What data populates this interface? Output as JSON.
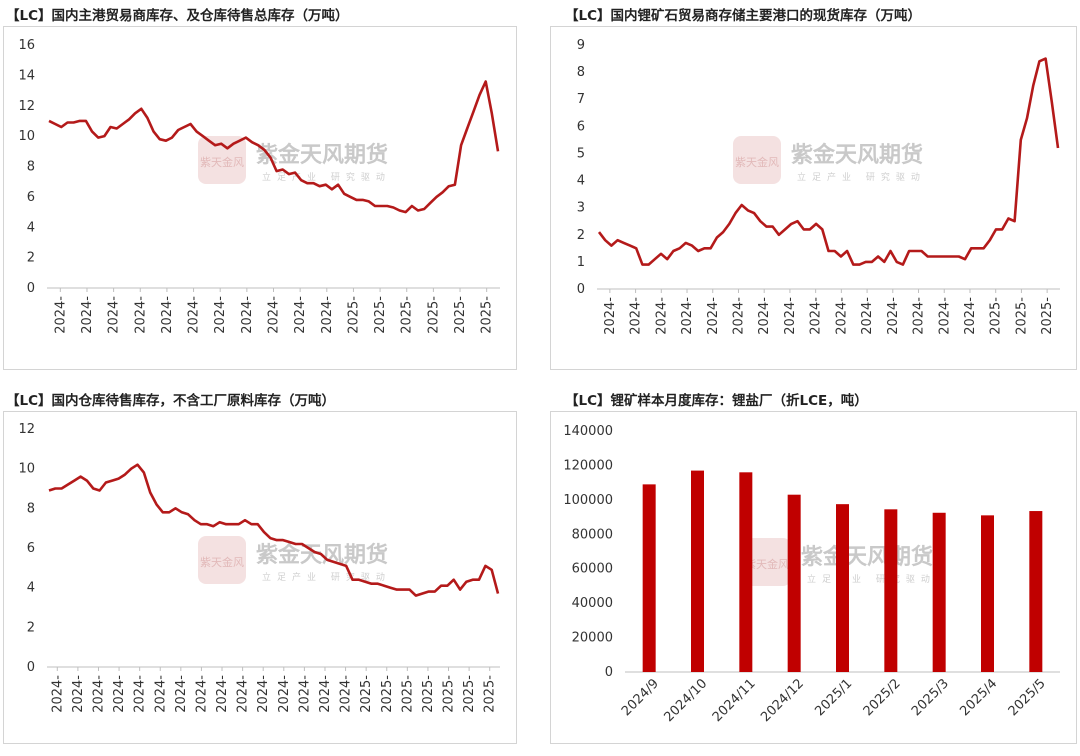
{
  "watermark": {
    "brand": "紫金天风期货",
    "slogan": "立足产业 研究驱动",
    "seal": "紫天金风"
  },
  "chart_data": [
    {
      "type": "line",
      "title": "【LC】国内主港贸易商库存、及仓库待售总库存（万吨）",
      "ylim": [
        0,
        16
      ],
      "yticks": [
        "0",
        "2",
        "4",
        "6",
        "8",
        "10",
        "12",
        "14",
        "16"
      ],
      "xticks": [
        "2024-",
        "2024-",
        "2024-",
        "2024-",
        "2024-",
        "2024-",
        "2024-",
        "2024-",
        "2024-",
        "2024-",
        "2024-",
        "2025-",
        "2025-",
        "2025-",
        "2025-",
        "2025-",
        "2025-"
      ],
      "line_color": "#b41a1a",
      "values": [
        11.0,
        10.8,
        10.6,
        10.9,
        10.9,
        11.0,
        11.0,
        10.3,
        9.9,
        10.0,
        10.6,
        10.5,
        10.8,
        11.1,
        11.5,
        11.8,
        11.2,
        10.3,
        9.8,
        9.7,
        9.9,
        10.4,
        10.6,
        10.8,
        10.3,
        10.0,
        9.7,
        9.4,
        9.5,
        9.2,
        9.5,
        9.7,
        9.9,
        9.6,
        9.4,
        9.1,
        8.6,
        7.7,
        7.8,
        7.5,
        7.6,
        7.1,
        6.9,
        6.9,
        6.7,
        6.8,
        6.5,
        6.8,
        6.2,
        6.0,
        5.8,
        5.8,
        5.7,
        5.4,
        5.4,
        5.4,
        5.3,
        5.1,
        5.0,
        5.4,
        5.1,
        5.2,
        5.6,
        6.0,
        6.3,
        6.7,
        6.8,
        9.4,
        10.5,
        11.6,
        12.7,
        13.6,
        11.5,
        9.0
      ]
    },
    {
      "type": "line",
      "title": "【LC】国内锂矿石贸易商存储主要港口的现货库存（万吨）",
      "ylim": [
        0,
        9
      ],
      "yticks": [
        "0",
        "1",
        "2",
        "3",
        "4",
        "5",
        "6",
        "7",
        "8",
        "9"
      ],
      "xticks": [
        "2024-",
        "2024-",
        "2024-",
        "2024-",
        "2024-",
        "2024-",
        "2024-",
        "2024-",
        "2024-",
        "2024-",
        "2024-",
        "2024-",
        "2024-",
        "2024-",
        "2024-",
        "2025-",
        "2025-",
        "2025-"
      ],
      "line_color": "#b41a1a",
      "values": [
        2.1,
        1.8,
        1.6,
        1.8,
        1.7,
        1.6,
        1.5,
        0.9,
        0.9,
        1.1,
        1.3,
        1.1,
        1.4,
        1.5,
        1.7,
        1.6,
        1.4,
        1.5,
        1.5,
        1.9,
        2.1,
        2.4,
        2.8,
        3.1,
        2.9,
        2.8,
        2.5,
        2.3,
        2.3,
        2.0,
        2.2,
        2.4,
        2.5,
        2.2,
        2.2,
        2.4,
        2.2,
        1.4,
        1.4,
        1.2,
        1.4,
        0.9,
        0.9,
        1.0,
        1.0,
        1.2,
        1.0,
        1.4,
        1.0,
        0.9,
        1.4,
        1.4,
        1.4,
        1.2,
        1.2,
        1.2,
        1.2,
        1.2,
        1.2,
        1.1,
        1.5,
        1.5,
        1.5,
        1.8,
        2.2,
        2.2,
        2.6,
        2.5,
        5.5,
        6.3,
        7.5,
        8.4,
        8.5,
        6.9,
        5.2
      ]
    },
    {
      "type": "line",
      "title": "【LC】国内仓库待售库存，不含工厂原料库存（万吨）",
      "ylim": [
        0,
        12
      ],
      "yticks": [
        "0",
        "2",
        "4",
        "6",
        "8",
        "10",
        "12"
      ],
      "xticks": [
        "2024-",
        "2024-",
        "2024-",
        "2024-",
        "2024-",
        "2024-",
        "2024-",
        "2024-",
        "2024-",
        "2024-",
        "2024-",
        "2024-",
        "2024-",
        "2024-",
        "2024-",
        "2025-",
        "2025-",
        "2025-",
        "2025-",
        "2025-",
        "2025-",
        "2025-"
      ],
      "line_color": "#b41a1a",
      "values": [
        8.9,
        9.0,
        9.0,
        9.2,
        9.4,
        9.6,
        9.4,
        9.0,
        8.9,
        9.3,
        9.4,
        9.5,
        9.7,
        10.0,
        10.2,
        9.8,
        8.8,
        8.2,
        7.8,
        7.8,
        8.0,
        7.8,
        7.7,
        7.4,
        7.2,
        7.2,
        7.1,
        7.3,
        7.2,
        7.2,
        7.2,
        7.4,
        7.2,
        7.2,
        6.8,
        6.5,
        6.4,
        6.4,
        6.3,
        6.2,
        6.2,
        6.0,
        5.8,
        5.7,
        5.4,
        5.3,
        5.2,
        5.1,
        4.4,
        4.4,
        4.3,
        4.2,
        4.2,
        4.1,
        4.0,
        3.9,
        3.9,
        3.9,
        3.6,
        3.7,
        3.8,
        3.8,
        4.1,
        4.1,
        4.4,
        3.9,
        4.3,
        4.4,
        4.4,
        5.1,
        4.9,
        3.7
      ]
    },
    {
      "type": "bar",
      "title": "【LC】锂矿样本月度库存：锂盐厂（折LCE，吨）",
      "ylim": [
        0,
        140000
      ],
      "yticks": [
        "0",
        "20000",
        "40000",
        "60000",
        "80000",
        "100000",
        "120000",
        "140000"
      ],
      "categories": [
        "2024/9",
        "2024/10",
        "2024/11",
        "2024/12",
        "2025/1",
        "2025/2",
        "2025/3",
        "2025/4",
        "2025/5"
      ],
      "values": [
        109000,
        117000,
        116000,
        103000,
        97500,
        94500,
        92500,
        91000,
        93500
      ],
      "bar_color": "#c00000"
    }
  ]
}
